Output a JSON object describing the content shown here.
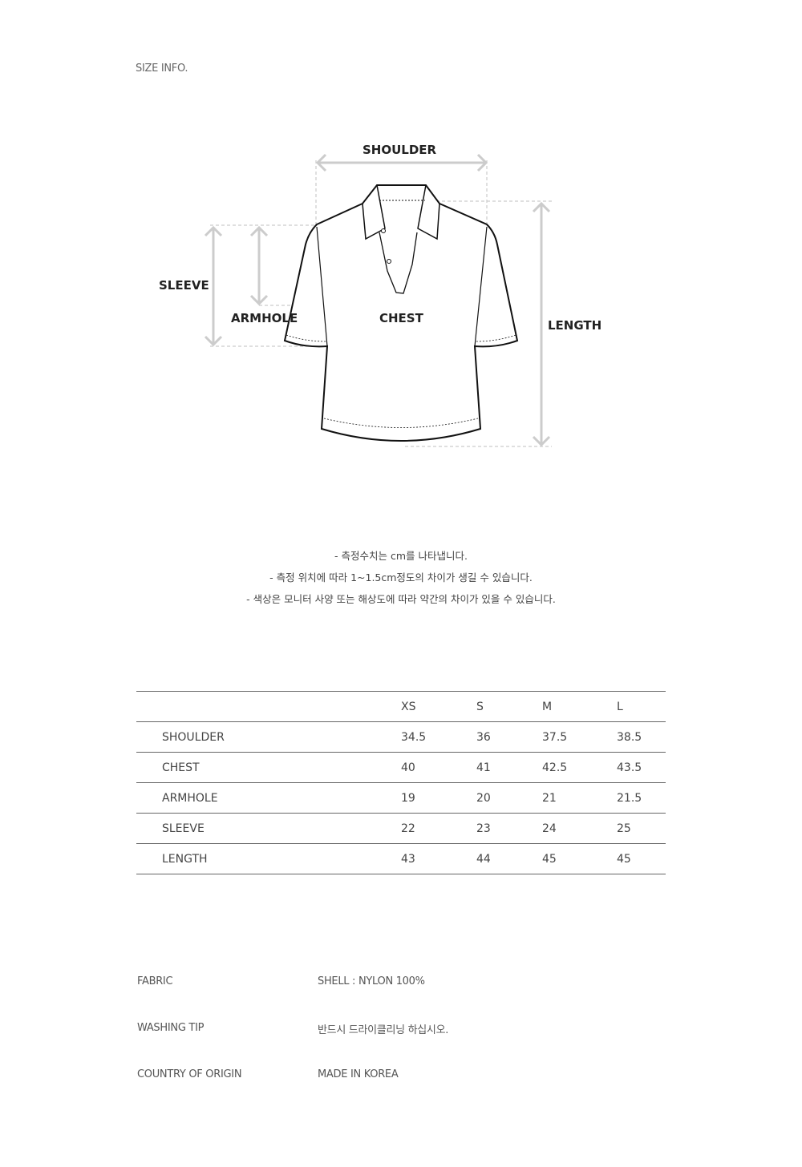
{
  "title": "SIZE INFO.",
  "diagram": {
    "shoulder": "SHOULDER",
    "sleeve": "SLEEVE",
    "armhole": "ARMHOLE",
    "chest": "CHEST",
    "length": "LENGTH"
  },
  "notes": [
    "- 측정수치는 cm를 나타냅니다.",
    "- 측정 위치에 따라 1~1.5cm정도의 차이가 생길 수 있습니다.",
    "- 색상은 모니터 사양 또는 해상도에 따라 약간의 차이가 있을 수 있습니다."
  ],
  "size_table": {
    "columns": [
      "",
      "XS",
      "S",
      "M",
      "L"
    ],
    "rows": [
      {
        "label": "SHOULDER",
        "values": [
          "34.5",
          "36",
          "37.5",
          "38.5"
        ]
      },
      {
        "label": "CHEST",
        "values": [
          "40",
          "41",
          "42.5",
          "43.5"
        ]
      },
      {
        "label": "ARMHOLE",
        "values": [
          "19",
          "20",
          "21",
          "21.5"
        ]
      },
      {
        "label": "SLEEVE",
        "values": [
          "22",
          "23",
          "24",
          "25"
        ]
      },
      {
        "label": "LENGTH",
        "values": [
          "43",
          "44",
          "45",
          "45"
        ]
      }
    ]
  },
  "info": [
    {
      "label": "FABRIC",
      "value": "SHELL : NYLON 100%"
    },
    {
      "label": "WASHING TIP",
      "value": "반드시 드라이클리닝 하십시오."
    },
    {
      "label": "COUNTRY OF ORIGIN",
      "value": "MADE IN KOREA"
    }
  ]
}
